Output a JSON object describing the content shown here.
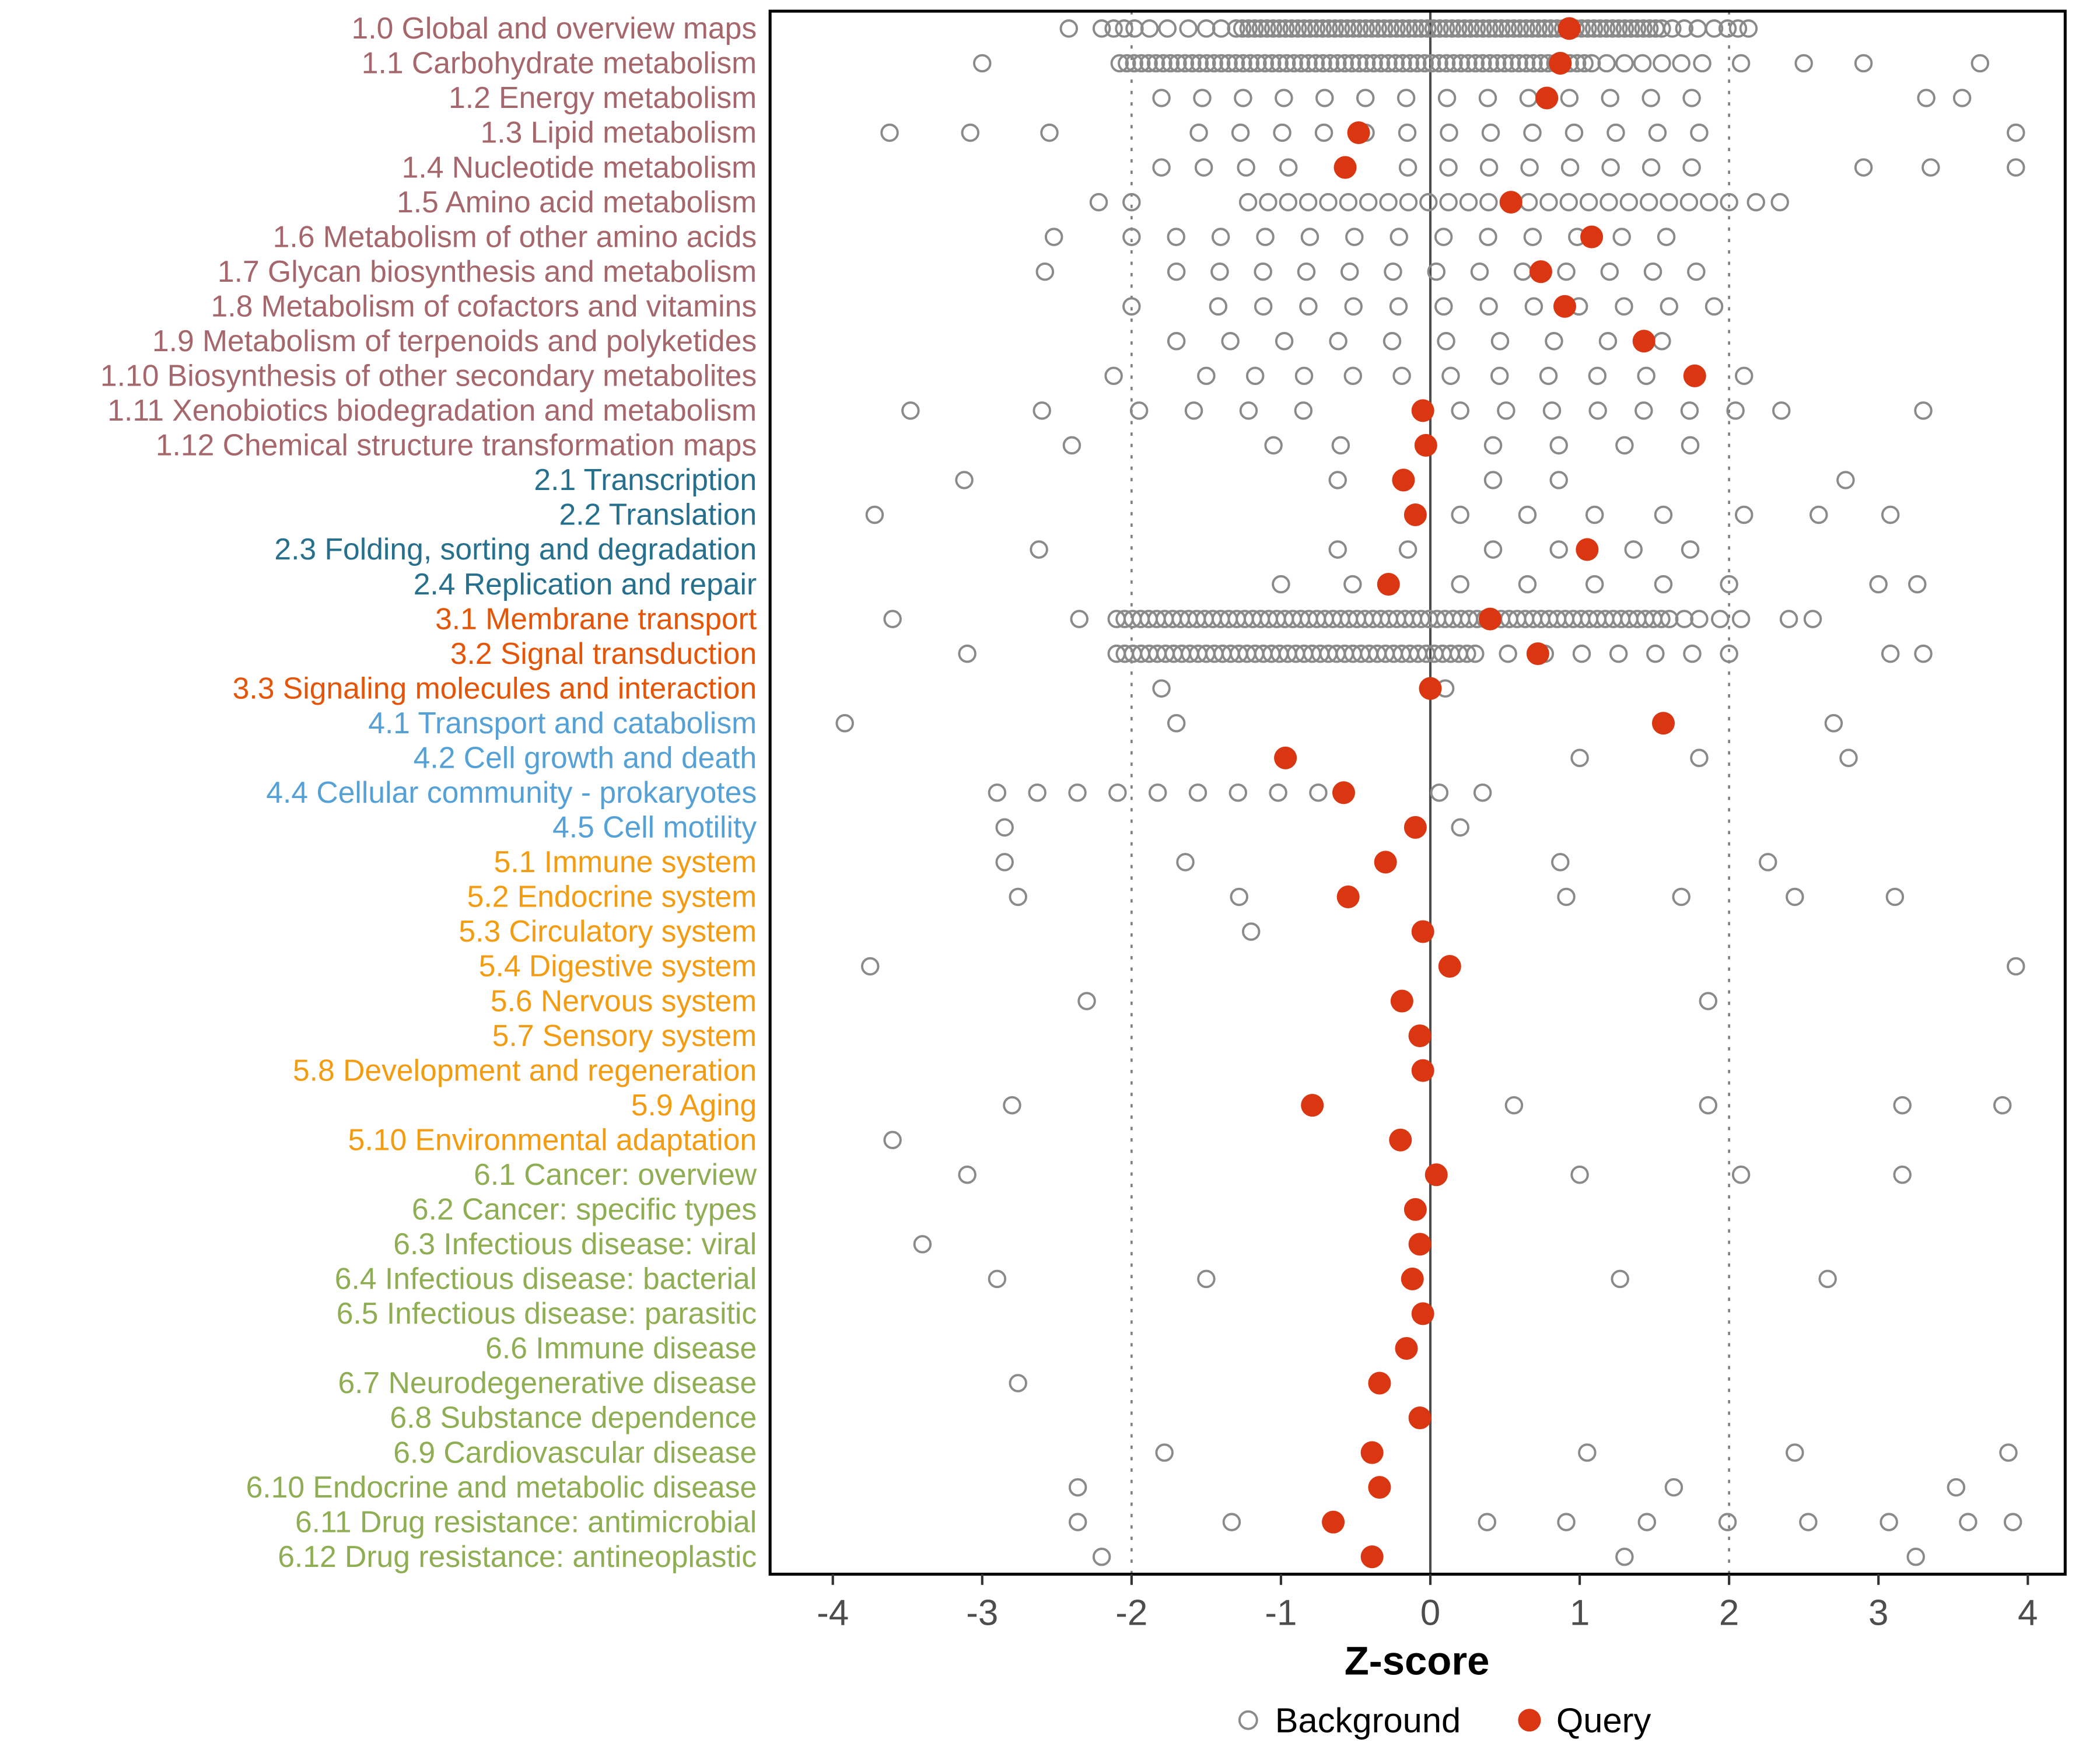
{
  "chart_data": {
    "type": "scatter",
    "xlabel": "Z-score",
    "x_ticks": [
      -4,
      -3,
      -2,
      -1,
      0,
      1,
      2,
      3,
      4
    ],
    "xlim": [
      -4.42,
      4.25
    ],
    "ref_lines": {
      "solid": [
        0
      ],
      "dotted": [
        -2,
        2
      ]
    },
    "legend": [
      {
        "label": "Background",
        "type": "open"
      },
      {
        "label": "Query",
        "type": "filled"
      }
    ],
    "legend_position": "bottom",
    "grid": false,
    "colors": {
      "background_stroke": "#8A8A8A",
      "query_fill": "#D93611",
      "axis_text": "#4D4D4D",
      "zero_line": "#4D4D4D",
      "dotted_line": "#808080",
      "panel_border": "#000000",
      "groups": {
        "1": "#A5676B",
        "2": "#26708E",
        "3": "#E45508",
        "4": "#55A1D6",
        "5": "#F39C12",
        "6": "#8FAE53"
      }
    },
    "rows": [
      {
        "label": "1.0 Global and overview maps",
        "group": "1",
        "query": 0.93,
        "bands": [
          [
            -1.3,
            1.55,
            70
          ]
        ],
        "bg": [
          -2.42,
          -2.2,
          -2.12,
          -2.05,
          -1.98,
          -1.88,
          -1.76,
          -1.62,
          -1.5,
          -1.4,
          1.62,
          1.7,
          1.79,
          1.9,
          1.99,
          2.06,
          2.13
        ]
      },
      {
        "label": "1.1 Carbohydrate metabolism",
        "group": "1",
        "query": 0.87,
        "bands": [
          [
            -2.08,
            1.08,
            66
          ]
        ],
        "bg": [
          -3.0,
          1.18,
          1.3,
          1.42,
          1.55,
          1.68,
          1.82,
          2.08,
          2.5,
          2.9,
          3.68
        ]
      },
      {
        "label": "1.2 Energy metabolism",
        "group": "1",
        "query": 0.78,
        "bands": [
          [
            -1.8,
            1.75,
            14
          ]
        ],
        "bg": [
          3.32,
          3.56
        ]
      },
      {
        "label": "1.3 Lipid metabolism",
        "group": "1",
        "query": -0.48,
        "bands": [
          [
            -1.55,
            1.8,
            13
          ]
        ],
        "bg": [
          -3.62,
          -3.08,
          -2.55,
          3.92
        ]
      },
      {
        "label": "1.4 Nucleotide metabolism",
        "group": "1",
        "query": -0.57,
        "bands": [
          [
            -1.8,
            -0.95,
            4
          ],
          [
            -0.15,
            1.75,
            8
          ]
        ],
        "bg": [
          2.9,
          3.35,
          3.92
        ]
      },
      {
        "label": "1.5 Amino acid metabolism",
        "group": "1",
        "query": 0.54,
        "bands": [
          [
            -1.22,
            2.0,
            25
          ]
        ],
        "bg": [
          -2.22,
          -2.0,
          2.18,
          2.34
        ]
      },
      {
        "label": "1.6 Metabolism of other amino acids",
        "group": "1",
        "query": 1.08,
        "bands": [
          [
            -2.0,
            1.58,
            13
          ]
        ],
        "bg": [
          -2.52
        ]
      },
      {
        "label": "1.7 Glycan biosynthesis and metabolism",
        "group": "1",
        "query": 0.74,
        "bands": [
          [
            -1.7,
            1.78,
            13
          ]
        ],
        "bg": [
          -2.58
        ]
      },
      {
        "label": "1.8 Metabolism of cofactors and vitamins",
        "group": "1",
        "query": 0.9,
        "bands": [
          [
            -1.42,
            1.9,
            12
          ]
        ],
        "bg": [
          -2.0
        ]
      },
      {
        "label": "1.9 Metabolism of terpenoids and polyketides",
        "group": "1",
        "query": 1.43,
        "bands": [
          [
            -1.7,
            1.55,
            10
          ]
        ],
        "bg": []
      },
      {
        "label": "1.10 Biosynthesis of other secondary metabolites",
        "group": "1",
        "query": 1.77,
        "bands": [
          [
            -1.5,
            2.1,
            12
          ]
        ],
        "bg": [
          -2.12
        ]
      },
      {
        "label": "1.11 Xenobiotics biodegradation and metabolism",
        "group": "1",
        "query": -0.05,
        "bands": [
          [
            -1.95,
            -0.85,
            4
          ],
          [
            0.2,
            2.35,
            8
          ]
        ],
        "bg": [
          -3.48,
          -2.6,
          3.3
        ]
      },
      {
        "label": "1.12 Chemical structure transformation maps",
        "group": "1",
        "query": -0.03,
        "bands": [],
        "bg": [
          -2.4,
          -1.05,
          -0.6,
          0.42,
          0.86,
          1.3,
          1.74
        ]
      },
      {
        "label": "2.1 Transcription",
        "group": "2",
        "query": -0.18,
        "bands": [],
        "bg": [
          -3.12,
          -0.62,
          0.42,
          0.86,
          2.78
        ]
      },
      {
        "label": "2.2 Translation",
        "group": "2",
        "query": -0.1,
        "bands": [],
        "bg": [
          -3.72,
          0.2,
          0.65,
          1.1,
          1.56,
          2.1,
          2.6,
          3.08
        ]
      },
      {
        "label": "2.3 Folding, sorting and degradation",
        "group": "2",
        "query": 1.05,
        "bands": [],
        "bg": [
          -2.62,
          -0.62,
          -0.15,
          0.42,
          0.86,
          1.36,
          1.74
        ]
      },
      {
        "label": "2.4 Replication and repair",
        "group": "2",
        "query": -0.28,
        "bands": [],
        "bg": [
          -1.0,
          -0.52,
          0.2,
          0.65,
          1.1,
          1.56,
          2.0,
          3.0,
          3.26
        ]
      },
      {
        "label": "3.1 Membrane transport",
        "group": "3",
        "query": 0.4,
        "bands": [
          [
            -2.1,
            1.6,
            70
          ]
        ],
        "bg": [
          -3.6,
          -2.35,
          1.7,
          1.8,
          1.94,
          2.08,
          2.4,
          2.56
        ]
      },
      {
        "label": "3.2 Signal transduction",
        "group": "3",
        "query": 0.72,
        "bands": [
          [
            -2.1,
            0.3,
            45
          ],
          [
            0.52,
            2.0,
            7
          ]
        ],
        "bg": [
          -3.1,
          3.08,
          3.3
        ]
      },
      {
        "label": "3.3 Signaling molecules and interaction",
        "group": "3",
        "query": 0.0,
        "bands": [],
        "bg": [
          -1.8,
          0.1
        ]
      },
      {
        "label": "4.1 Transport and catabolism",
        "group": "4",
        "query": 1.56,
        "bands": [],
        "bg": [
          -3.92,
          -1.7,
          2.7
        ]
      },
      {
        "label": "4.2 Cell growth and death",
        "group": "4",
        "query": -0.97,
        "bands": [],
        "bg": [
          1.0,
          1.8,
          2.8
        ]
      },
      {
        "label": "4.4 Cellular community - prokaryotes",
        "group": "4",
        "query": -0.58,
        "bands": [
          [
            -2.9,
            -0.75,
            9
          ]
        ],
        "bg": [
          0.06,
          0.35
        ]
      },
      {
        "label": "4.5 Cell motility",
        "group": "4",
        "query": -0.1,
        "bands": [],
        "bg": [
          -2.85,
          0.2
        ]
      },
      {
        "label": "5.1 Immune system",
        "group": "5",
        "query": -0.3,
        "bands": [],
        "bg": [
          -2.85,
          -1.64,
          0.87,
          2.26
        ]
      },
      {
        "label": "5.2 Endocrine system",
        "group": "5",
        "query": -0.55,
        "bands": [],
        "bg": [
          -2.76,
          -1.28,
          0.91,
          1.68,
          2.44,
          3.11
        ]
      },
      {
        "label": "5.3 Circulatory system",
        "group": "5",
        "query": -0.05,
        "bands": [],
        "bg": [
          -1.2
        ]
      },
      {
        "label": "5.4 Digestive system",
        "group": "5",
        "query": 0.13,
        "bands": [],
        "bg": [
          -3.75,
          3.92
        ]
      },
      {
        "label": "5.6 Nervous system",
        "group": "5",
        "query": -0.19,
        "bands": [],
        "bg": [
          -2.3,
          1.86
        ]
      },
      {
        "label": "5.7 Sensory system",
        "group": "5",
        "query": -0.07,
        "bands": [],
        "bg": []
      },
      {
        "label": "5.8 Development and regeneration",
        "group": "5",
        "query": -0.05,
        "bands": [],
        "bg": []
      },
      {
        "label": "5.9 Aging",
        "group": "5",
        "query": -0.79,
        "bands": [],
        "bg": [
          -2.8,
          0.56,
          1.86,
          3.16,
          3.83
        ]
      },
      {
        "label": "5.10 Environmental adaptation",
        "group": "5",
        "query": -0.2,
        "bands": [],
        "bg": [
          -3.6
        ]
      },
      {
        "label": "6.1 Cancer: overview",
        "group": "6",
        "query": 0.04,
        "bands": [],
        "bg": [
          -3.1,
          1.0,
          2.08,
          3.16
        ]
      },
      {
        "label": "6.2 Cancer: specific types",
        "group": "6",
        "query": -0.1,
        "bands": [],
        "bg": []
      },
      {
        "label": "6.3 Infectious disease: viral",
        "group": "6",
        "query": -0.07,
        "bands": [],
        "bg": [
          -3.4
        ]
      },
      {
        "label": "6.4 Infectious disease: bacterial",
        "group": "6",
        "query": -0.12,
        "bands": [],
        "bg": [
          -2.9,
          -1.5,
          1.27,
          2.66
        ]
      },
      {
        "label": "6.5 Infectious disease: parasitic",
        "group": "6",
        "query": -0.05,
        "bands": [],
        "bg": []
      },
      {
        "label": "6.6 Immune disease",
        "group": "6",
        "query": -0.16,
        "bands": [],
        "bg": []
      },
      {
        "label": "6.7 Neurodegenerative disease",
        "group": "6",
        "query": -0.34,
        "bands": [],
        "bg": [
          -2.76
        ]
      },
      {
        "label": "6.8 Substance dependence",
        "group": "6",
        "query": -0.07,
        "bands": [],
        "bg": []
      },
      {
        "label": "6.9 Cardiovascular disease",
        "group": "6",
        "query": -0.39,
        "bands": [],
        "bg": [
          -1.78,
          1.05,
          2.44,
          3.87
        ]
      },
      {
        "label": "6.10 Endocrine and metabolic disease",
        "group": "6",
        "query": -0.34,
        "bands": [],
        "bg": [
          -2.36,
          1.63,
          3.52
        ]
      },
      {
        "label": "6.11 Drug resistance: antimicrobial",
        "group": "6",
        "query": -0.65,
        "bands": [],
        "bg": [
          -2.36,
          -1.33,
          0.38,
          0.91,
          1.45,
          1.99,
          2.53,
          3.07,
          3.6,
          3.9
        ]
      },
      {
        "label": "6.12 Drug resistance: antineoplastic",
        "group": "6",
        "query": -0.39,
        "bands": [],
        "bg": [
          -2.2,
          1.3,
          3.25
        ]
      }
    ]
  }
}
